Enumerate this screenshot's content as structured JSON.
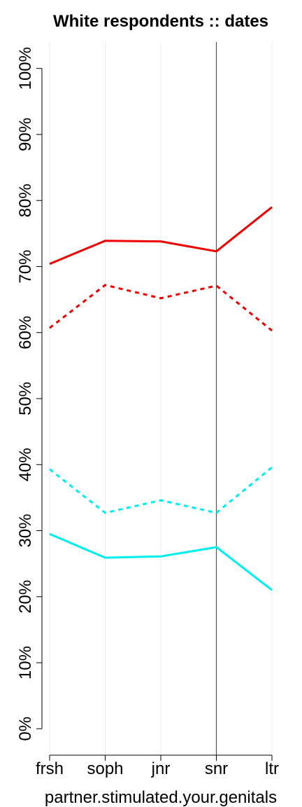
{
  "chart_data": {
    "type": "line",
    "title": "White respondents :: dates",
    "x_label": "partner.stimulated.your.genitals",
    "categories": [
      "frsh",
      "soph",
      "jnr",
      "snr",
      "ltr"
    ],
    "series": [
      {
        "color": "#ee0000",
        "dash": "solid",
        "values": [
          70.4,
          73.9,
          73.8,
          72.3,
          79.0
        ]
      },
      {
        "color": "#ee0000",
        "dash": "dotted",
        "values": [
          60.7,
          67.2,
          65.2,
          67.1,
          60.3
        ]
      },
      {
        "color": "#00eeee",
        "dash": "dotted",
        "values": [
          39.3,
          32.7,
          34.6,
          32.7,
          39.6
        ]
      },
      {
        "color": "#00eeee",
        "dash": "solid",
        "values": [
          29.5,
          25.9,
          26.1,
          27.5,
          21.0
        ]
      }
    ],
    "ylim": [
      -4,
      104
    ],
    "yticks": [
      {
        "value": 0,
        "label": "0%"
      },
      {
        "value": 10,
        "label": "10%"
      },
      {
        "value": 20,
        "label": "20%"
      },
      {
        "value": 30,
        "label": "30%"
      },
      {
        "value": 40,
        "label": "40%"
      },
      {
        "value": 50,
        "label": "50%"
      },
      {
        "value": 60,
        "label": "60%"
      },
      {
        "value": 70,
        "label": "70%"
      },
      {
        "value": 80,
        "label": "80%"
      },
      {
        "value": 90,
        "label": "90%"
      },
      {
        "value": 100,
        "label": "100%"
      }
    ],
    "highlight_index": 3,
    "grid": true
  }
}
